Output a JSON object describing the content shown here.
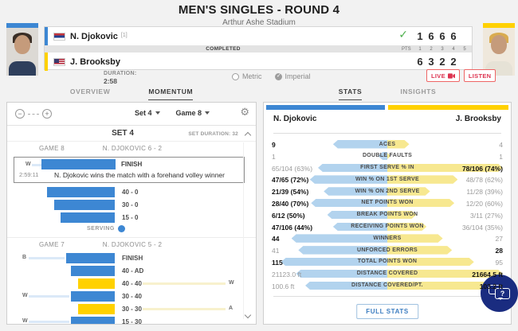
{
  "header": {
    "title": "MEN'S SINGLES - ROUND 4",
    "venue": "Arthur Ashe Stadium",
    "status": "COMPLETED",
    "pts_label": "PTS",
    "set_cols": [
      "1",
      "2",
      "3",
      "4",
      "5"
    ],
    "duration_label": "DURATION:",
    "duration_value": "2:58",
    "units": {
      "metric_label": "Metric",
      "imperial_label": "Imperial",
      "selected": "imperial"
    },
    "live_label": "LIVE",
    "listen_label": "LISTEN",
    "players": [
      {
        "name": "N. Djokovic",
        "seed": "[1]",
        "flag": "serbia",
        "accent_color": "#3d87d3",
        "sets": [
          "1",
          "6",
          "6",
          "6"
        ],
        "winner": true
      },
      {
        "name": "J. Brooksby",
        "seed": "",
        "flag": "usa",
        "accent_color": "#ffd100",
        "sets": [
          "6",
          "3",
          "2",
          "2"
        ],
        "winner": false
      }
    ]
  },
  "tabs": {
    "left": [
      {
        "label": "OVERVIEW",
        "active": false
      },
      {
        "label": "MOMENTUM",
        "active": true
      }
    ],
    "right": [
      {
        "label": "STATS",
        "active": true
      },
      {
        "label": "INSIGHTS",
        "active": false
      }
    ]
  },
  "momentum": {
    "set_select": "Set 4",
    "game_select": "Game 8",
    "set_title": "SET 4",
    "set_duration": "SET DURATION: 32",
    "serving_label": "SERVING",
    "games": [
      {
        "game_label": "GAME 8",
        "score_label": "N. DJOKOVIC 6 - 2",
        "highlight": {
          "letter": "W",
          "score": "FINISH",
          "time": "2:59:11",
          "description": "N. Djokovic wins the match with a forehand volley winner",
          "bar": 93,
          "side": "p1"
        },
        "points": [
          {
            "side": "p1",
            "bar": 85,
            "score": "40 - 0"
          },
          {
            "side": "p1",
            "bar": 76,
            "score": "30 - 0"
          },
          {
            "side": "p1",
            "bar": 68,
            "score": "15 - 0"
          }
        ],
        "serving": true
      },
      {
        "game_label": "GAME 7",
        "score_label": "N. DJOKOVIC 5 - 2",
        "points": [
          {
            "side": "p1",
            "bar": 61,
            "score": "FINISH",
            "left_letter": "B"
          },
          {
            "side": "p1",
            "bar": 55,
            "score": "40 - AD"
          },
          {
            "side": "p2",
            "bar": 46,
            "score": "40 - 40",
            "right_letter": "W"
          },
          {
            "side": "p1",
            "bar": 55,
            "score": "30 - 40",
            "left_letter": "W"
          },
          {
            "side": "p2",
            "bar": 46,
            "score": "30 - 30",
            "right_letter": "A"
          },
          {
            "side": "p1",
            "bar": 55,
            "score": "15 - 30",
            "left_letter": "W"
          }
        ],
        "serving": false
      }
    ]
  },
  "stats": {
    "p1_name": "N. Djokovic",
    "p2_name": "J. Brooksby",
    "rows": [
      {
        "label": "ACES",
        "p1": "9",
        "p2": "4",
        "p1_bold": true,
        "p2_bold": false,
        "p1_bar": 47,
        "p2_bar": 19
      },
      {
        "label": "DOUBLE FAULTS",
        "p1": "1",
        "p2": "1",
        "p1_bold": false,
        "p2_bold": false,
        "p1_bar": 8,
        "p2_bar": 3
      },
      {
        "label": "FIRST SERVE % IN",
        "p1": "65/104 (63%)",
        "p2": "78/106 (74%)",
        "p1_bold": false,
        "p2_bold": true,
        "p1_bar": 60,
        "p2_bar": 100
      },
      {
        "label": "WIN % ON 1ST SERVE",
        "p1": "47/65 (72%)",
        "p2": "48/78 (62%)",
        "p1_bold": true,
        "p2_bold": false,
        "p1_bar": 67,
        "p2_bar": 61
      },
      {
        "label": "WIN % ON 2ND SERVE",
        "p1": "21/39 (54%)",
        "p2": "11/28 (39%)",
        "p1_bold": true,
        "p2_bold": false,
        "p1_bar": 55,
        "p2_bar": 37
      },
      {
        "label": "NET POINTS WON",
        "p1": "28/40 (70%)",
        "p2": "12/20 (60%)",
        "p1_bold": true,
        "p2_bold": false,
        "p1_bar": 66,
        "p2_bar": 58
      },
      {
        "label": "BREAK POINTS WON",
        "p1": "6/12 (50%)",
        "p2": "3/11 (27%)",
        "p1_bold": true,
        "p2_bold": false,
        "p1_bar": 52,
        "p2_bar": 25
      },
      {
        "label": "RECEIVING POINTS WON",
        "p1": "47/106 (44%)",
        "p2": "36/104 (35%)",
        "p1_bold": true,
        "p2_bold": false,
        "p1_bar": 47,
        "p2_bar": 34
      },
      {
        "label": "WINNERS",
        "p1": "44",
        "p2": "27",
        "p1_bold": true,
        "p2_bold": false,
        "p1_bar": 83,
        "p2_bar": 48
      },
      {
        "label": "UNFORCED ERRORS",
        "p1": "41",
        "p2": "28",
        "p1_bold": false,
        "p2_bold": true,
        "p1_bar": 77,
        "p2_bar": 56
      },
      {
        "label": "TOTAL POINTS WON",
        "p1": "115",
        "p2": "95",
        "p1_bold": true,
        "p2_bold": false,
        "p1_bar": 92,
        "p2_bar": 75
      },
      {
        "label": "DISTANCE COVERED",
        "p1": "21123.0 ft",
        "p2": "21664.5 ft",
        "p1_bold": false,
        "p2_bold": true,
        "p1_bar": 79,
        "p2_bar": 100
      },
      {
        "label": "DISTANCE COVERED/PT.",
        "p1": "100.6 ft",
        "p2": "103.2 ft",
        "p1_bold": false,
        "p2_bold": true,
        "p1_bar": 71,
        "p2_bar": 95
      }
    ],
    "full_stats_label": "FULL STATS"
  },
  "icons": {
    "gear": "⚙",
    "check": "✓",
    "zoom_in": "+",
    "zoom_out": "−",
    "chat_question": "?"
  },
  "colors": {
    "p1_blue": "#3d87d3",
    "p2_yellow": "#ffd100",
    "stat_blue": "#b2d3ee",
    "stat_yellow": "#f7e890",
    "live_red": "#dd3350",
    "chat_navy": "#1a2c80"
  }
}
